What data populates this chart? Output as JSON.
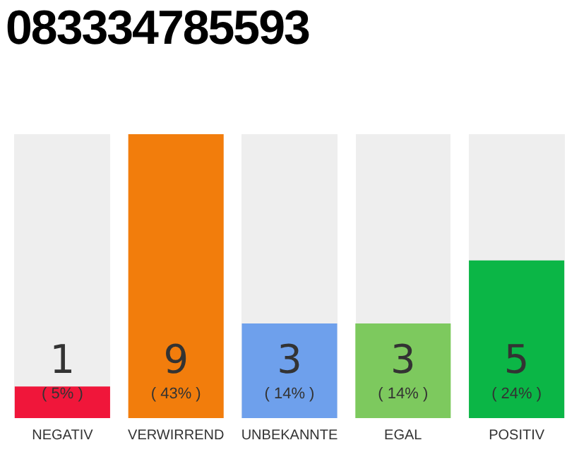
{
  "chart_data": {
    "type": "bar",
    "title": "083334785593",
    "categories": [
      "NEGATIV",
      "VERWIRREND",
      "UNBEKANNTE",
      "EGAL",
      "POSITIV"
    ],
    "values": [
      1,
      9,
      3,
      3,
      5
    ],
    "colors": [
      "#f0163a",
      "#f27d0c",
      "#6ea0ec",
      "#7dc95e",
      "#0bb646"
    ],
    "data_labels": true,
    "annotations": [
      "( 5% )",
      "( 43% )",
      "( 14% )",
      "( 14% )",
      "( 24% )"
    ],
    "grid": false,
    "legend": false
  }
}
